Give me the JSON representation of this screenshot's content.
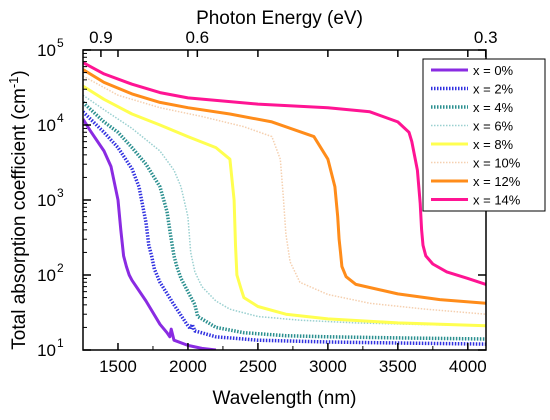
{
  "chart_data": {
    "type": "line",
    "xlabel": "Wavelength (nm)",
    "ylabel_main": "Total absorption coefficient (cm",
    "ylabel_sup": "-1",
    "ylabel_close": ")",
    "top_axis_label": "Photon Energy (eV)",
    "xlim": [
      1250,
      4130
    ],
    "ylim": [
      10,
      100000
    ],
    "yscale": "log",
    "x_ticks": [
      {
        "value": 1500,
        "label": "1500"
      },
      {
        "value": 2000,
        "label": "2000"
      },
      {
        "value": 2500,
        "label": "2500"
      },
      {
        "value": 3000,
        "label": "3000"
      },
      {
        "value": 3500,
        "label": "3500"
      },
      {
        "value": 4000,
        "label": "4000"
      }
    ],
    "y_ticks": [
      {
        "value": 10,
        "base": "10",
        "exp": "1"
      },
      {
        "value": 100,
        "base": "10",
        "exp": "2"
      },
      {
        "value": 1000,
        "base": "10",
        "exp": "3"
      },
      {
        "value": 10000,
        "base": "10",
        "exp": "4"
      },
      {
        "value": 100000,
        "base": "10",
        "exp": "5"
      }
    ],
    "top_ticks": [
      {
        "wavelength": 1378,
        "label": "0.9"
      },
      {
        "wavelength": 2067,
        "label": "0.6"
      },
      {
        "wavelength": 4133,
        "label": "0.3"
      }
    ],
    "legend_position": "top-right",
    "series": [
      {
        "name": "x = 0%",
        "color": "#8a2be2",
        "style": "solid",
        "width": 3,
        "x": [
          1250,
          1300,
          1400,
          1450,
          1500,
          1520,
          1540,
          1560,
          1580,
          1600,
          1700,
          1800,
          1850,
          1870,
          1880,
          1900,
          2000,
          2100,
          2200
        ],
        "y": [
          12000,
          8500,
          4500,
          2800,
          1000,
          400,
          180,
          130,
          100,
          85,
          45,
          22,
          17,
          15,
          19,
          13.5,
          11.5,
          10.5,
          10
        ]
      },
      {
        "name": "x = 2%",
        "color": "#3030e0",
        "style": "dotted",
        "width": 3.5,
        "x": [
          1250,
          1400,
          1500,
          1600,
          1650,
          1700,
          1720,
          1740,
          1760,
          1800,
          1900,
          2000,
          2020,
          2030,
          2050,
          2200,
          2500,
          3000,
          3500,
          4130
        ],
        "y": [
          15000,
          8000,
          5000,
          2600,
          1500,
          500,
          250,
          180,
          120,
          80,
          40,
          21,
          19,
          22,
          18,
          15,
          13.5,
          12.8,
          12.4,
          12
        ]
      },
      {
        "name": "x = 4%",
        "color": "#2a8f8f",
        "style": "dotted",
        "width": 3.5,
        "x": [
          1250,
          1400,
          1500,
          1600,
          1700,
          1800,
          1850,
          1880,
          1900,
          1920,
          1950,
          2000,
          2050,
          2070,
          2100,
          2200,
          2400,
          2700,
          3000,
          3500,
          4130
        ],
        "y": [
          20000,
          11000,
          8000,
          5000,
          3000,
          1500,
          700,
          300,
          180,
          130,
          90,
          60,
          40,
          28,
          26,
          20,
          17,
          15.5,
          15,
          14.5,
          14
        ]
      },
      {
        "name": "x = 6%",
        "color": "#9ad0d0",
        "style": "dotted",
        "width": 1.5,
        "x": [
          1250,
          1400,
          1600,
          1800,
          1900,
          1950,
          2000,
          2020,
          2050,
          2100,
          2200,
          2300,
          2500,
          2800,
          3200,
          3600,
          4130
        ],
        "y": [
          25000,
          16000,
          9000,
          4500,
          2500,
          1500,
          600,
          200,
          110,
          70,
          45,
          35,
          28,
          25,
          23,
          22,
          21
        ]
      },
      {
        "name": "x = 8%",
        "color": "#ffff50",
        "style": "solid",
        "width": 3,
        "x": [
          1250,
          1400,
          1600,
          1800,
          2000,
          2200,
          2300,
          2330,
          2340,
          2350,
          2380,
          2400,
          2500,
          2700,
          3000,
          3500,
          4130
        ],
        "y": [
          33000,
          22000,
          14000,
          10000,
          7000,
          5000,
          3500,
          1000,
          250,
          100,
          65,
          50,
          38,
          30,
          26,
          23,
          21
        ]
      },
      {
        "name": "x = 10%",
        "color": "#f5d0b0",
        "style": "dotted",
        "width": 1.5,
        "x": [
          1250,
          1500,
          1800,
          2100,
          2400,
          2600,
          2660,
          2680,
          2700,
          2730,
          2800,
          3000,
          3300,
          3700,
          4130
        ],
        "y": [
          45000,
          25000,
          17000,
          13000,
          9500,
          7000,
          3500,
          1200,
          350,
          150,
          80,
          55,
          42,
          35,
          30
        ]
      },
      {
        "name": "x = 12%",
        "color": "#ff8c1a",
        "style": "solid",
        "width": 3,
        "x": [
          1250,
          1400,
          1600,
          1800,
          2000,
          2300,
          2600,
          2900,
          3000,
          3050,
          3070,
          3080,
          3090,
          3100,
          3130,
          3200,
          3500,
          3800,
          4130
        ],
        "y": [
          55000,
          37000,
          26000,
          20000,
          17000,
          14000,
          11000,
          7000,
          3500,
          1500,
          600,
          300,
          200,
          130,
          95,
          75,
          56,
          47,
          42
        ]
      },
      {
        "name": "x = 14%",
        "color": "#ff1493",
        "style": "solid",
        "width": 3,
        "x": [
          1250,
          1400,
          1600,
          1800,
          2000,
          2500,
          3000,
          3300,
          3500,
          3580,
          3600,
          3640,
          3660,
          3670,
          3680,
          3700,
          3750,
          3850,
          4000,
          4130
        ],
        "y": [
          68000,
          48000,
          35000,
          27000,
          23000,
          19000,
          17000,
          15000,
          11000,
          8000,
          6000,
          2500,
          900,
          400,
          250,
          180,
          140,
          110,
          90,
          75
        ]
      }
    ]
  }
}
